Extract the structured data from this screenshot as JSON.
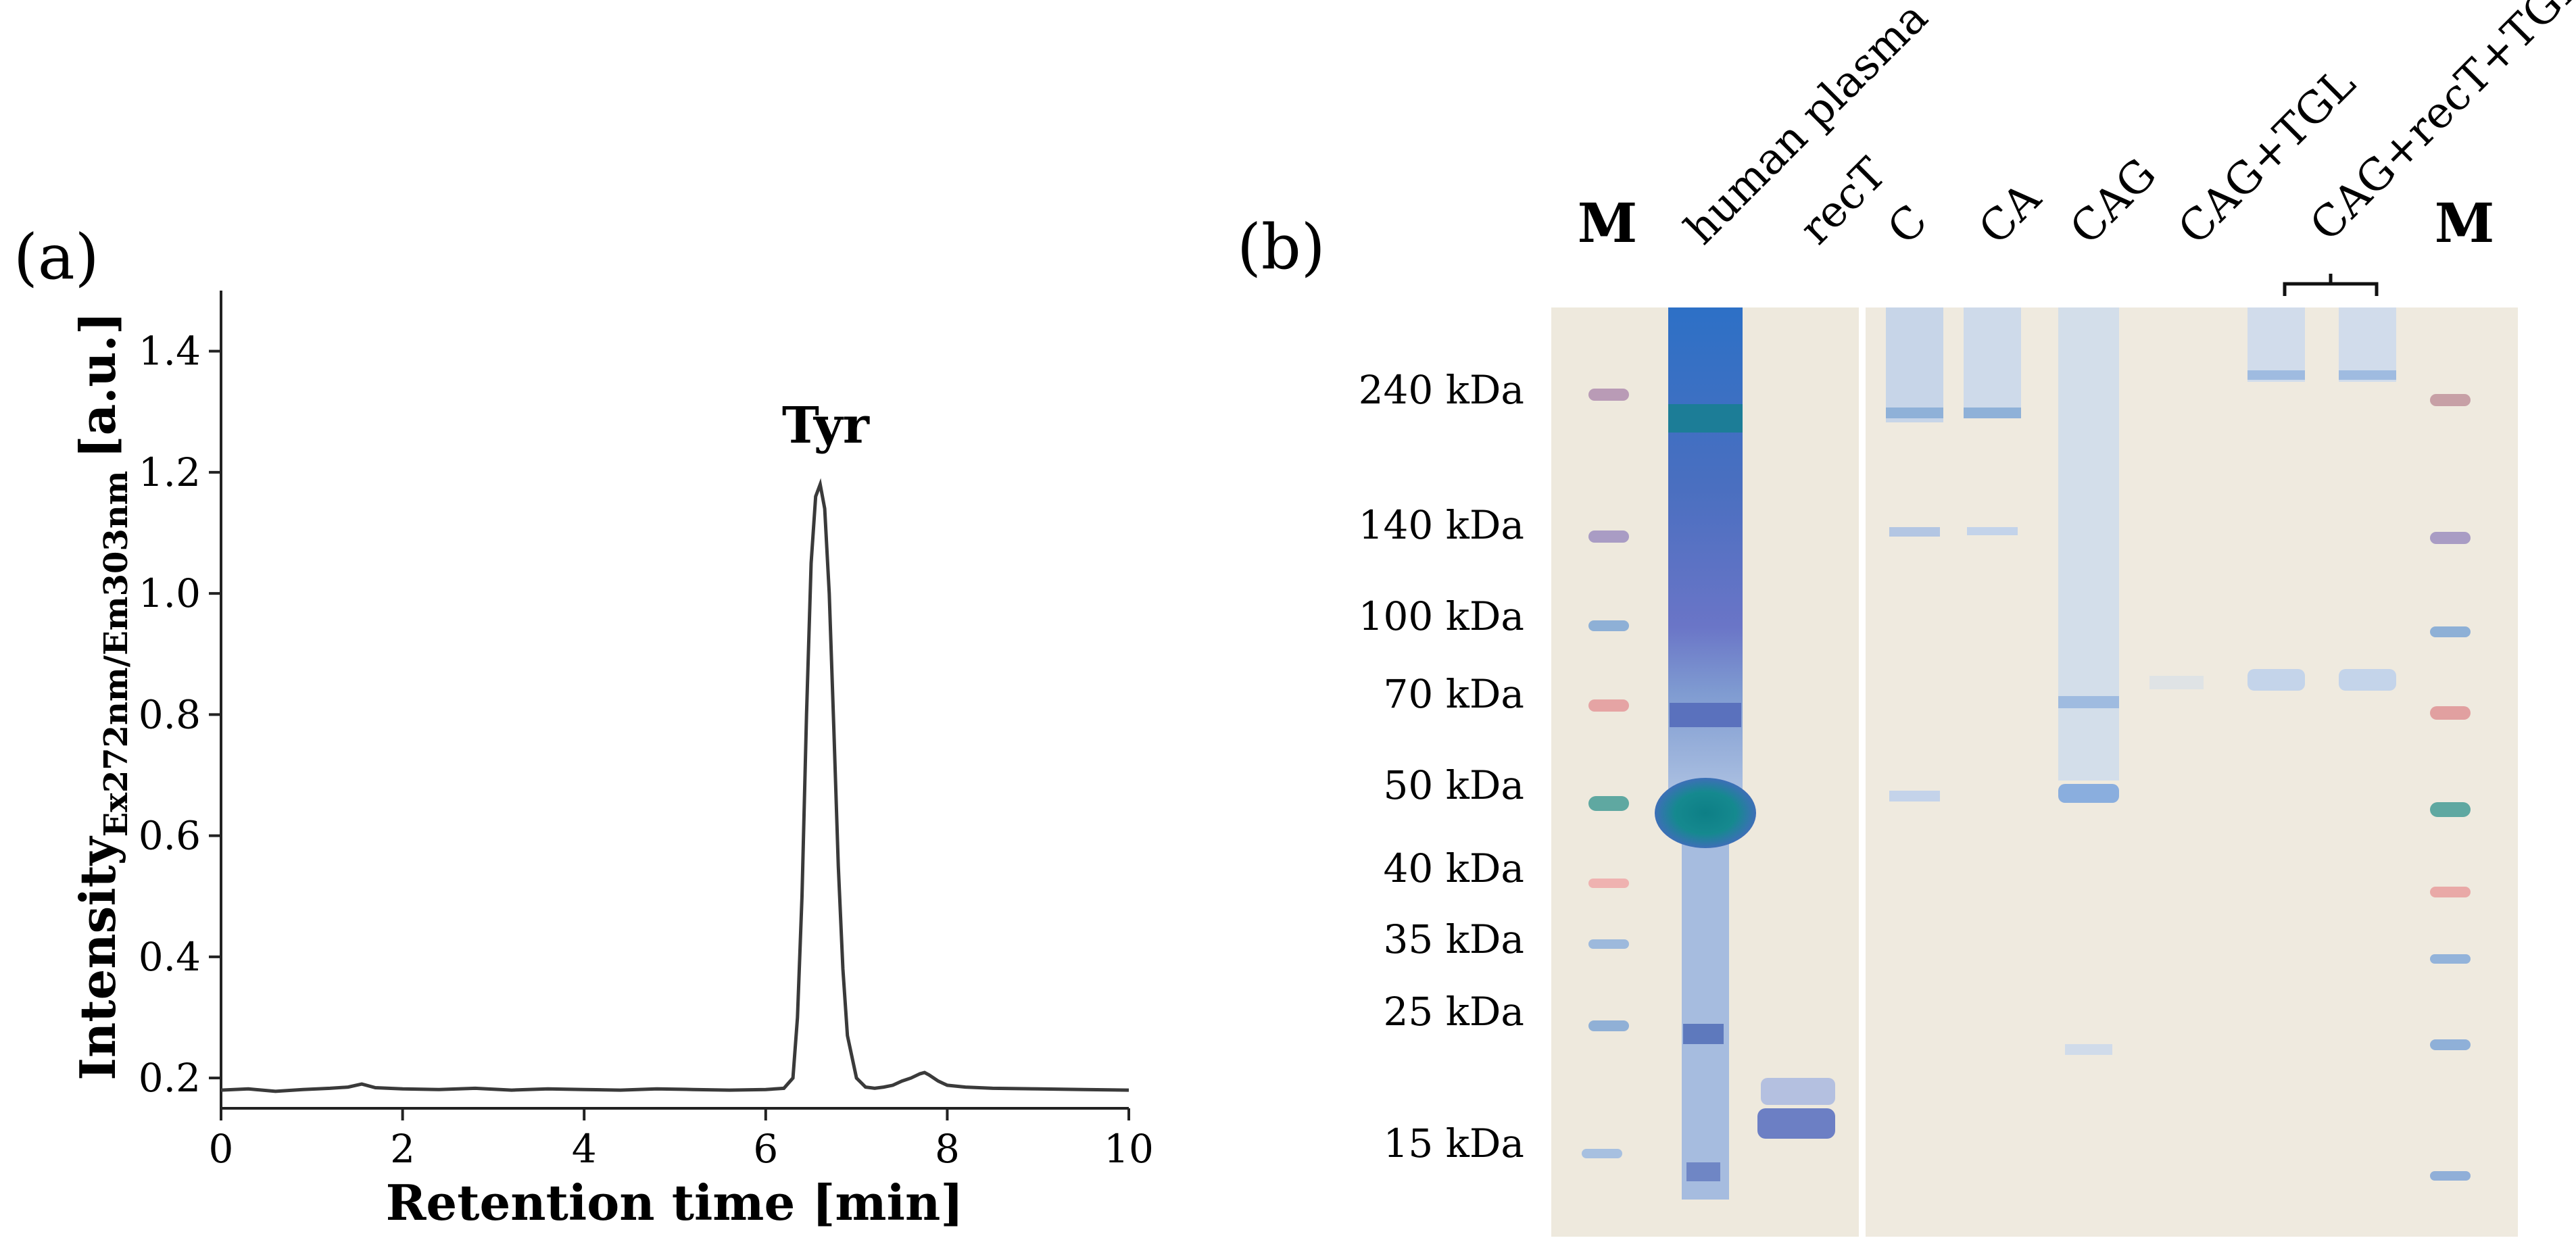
{
  "panel_a": {
    "label": "(a)"
  },
  "panel_b": {
    "label": "(b)"
  },
  "chart_data": {
    "type": "line",
    "title": "",
    "xlabel": "Retention time [min]",
    "ylabel": "Intensity",
    "ylabel_subscript": "Ex272nm/Em303nm",
    "ylabel_unit": "[a.u.]",
    "xlim": [
      0,
      10
    ],
    "ylim": [
      0.15,
      1.5
    ],
    "xticks": [
      0,
      2,
      4,
      6,
      8,
      10
    ],
    "yticks": [
      0.2,
      0.4,
      0.6,
      0.8,
      1.0,
      1.2,
      1.4
    ],
    "grid": false,
    "annotations": [
      {
        "text": "Tyr",
        "x": 6.6,
        "y": 1.26
      }
    ],
    "series": [
      {
        "x": [
          0,
          0.3,
          0.6,
          0.9,
          1.2,
          1.4,
          1.55,
          1.7,
          2.0,
          2.4,
          2.8,
          3.2,
          3.6,
          4.0,
          4.4,
          4.8,
          5.2,
          5.6,
          6.0,
          6.2,
          6.3,
          6.35,
          6.4,
          6.45,
          6.5,
          6.55,
          6.6,
          6.65,
          6.7,
          6.75,
          6.8,
          6.85,
          6.9,
          7.0,
          7.1,
          7.2,
          7.3,
          7.4,
          7.5,
          7.6,
          7.7,
          7.75,
          7.8,
          7.9,
          8.0,
          8.2,
          8.5,
          9.0,
          9.5,
          10.0
        ],
        "y": [
          0.18,
          0.182,
          0.178,
          0.181,
          0.183,
          0.185,
          0.19,
          0.184,
          0.182,
          0.181,
          0.183,
          0.18,
          0.182,
          0.181,
          0.18,
          0.182,
          0.181,
          0.18,
          0.181,
          0.183,
          0.2,
          0.3,
          0.5,
          0.8,
          1.05,
          1.16,
          1.18,
          1.14,
          1.0,
          0.78,
          0.55,
          0.38,
          0.27,
          0.2,
          0.185,
          0.183,
          0.185,
          0.188,
          0.195,
          0.2,
          0.207,
          0.209,
          0.205,
          0.195,
          0.188,
          0.185,
          0.183,
          0.182,
          0.181,
          0.18
        ]
      }
    ]
  },
  "gel": {
    "marker_label": "M",
    "lanes": [
      "human plasma",
      "recT",
      "C",
      "CA",
      "CAG",
      "CAG+TGL",
      "CAG+recT+TGL"
    ],
    "marker_bands": [
      "240 kDa",
      "140 kDa",
      "100 kDa",
      "70 kDa",
      "50 kDa",
      "40 kDa",
      "35 kDa",
      "25 kDa",
      "15 kDa"
    ]
  }
}
